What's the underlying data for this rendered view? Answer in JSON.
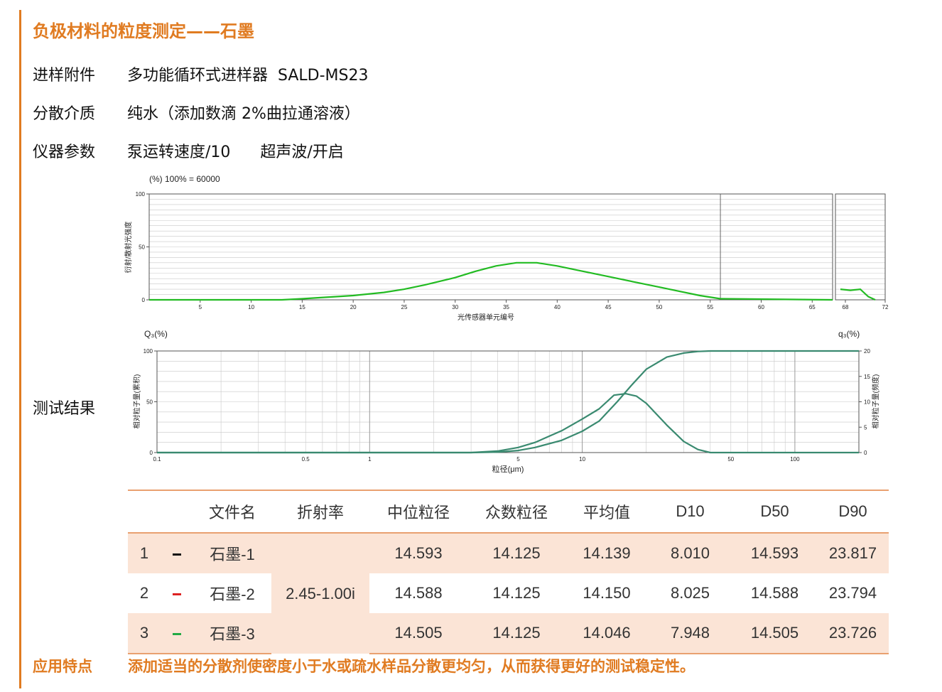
{
  "title": "负极材料的粒度测定——石墨",
  "params": [
    {
      "label": "进样附件",
      "value": "多功能循环式进样器  SALD-MS23"
    },
    {
      "label": "分散介质",
      "value": "纯水（添加数滴 2%曲拉通溶液）"
    },
    {
      "label": "仪器参数",
      "value": "泵运转速度/10      超声波/开启"
    }
  ],
  "result_label": "测试结果",
  "chart_data": [
    {
      "type": "line",
      "title": "(%) 100% = 60000",
      "xlabel": "光传感器单元编号",
      "ylabel": "衍射/散射光强度",
      "xlim": [
        0,
        67
      ],
      "ylim": [
        0,
        100
      ],
      "x_ticks": [
        5,
        10,
        15,
        20,
        25,
        30,
        35,
        40,
        45,
        50,
        55,
        60,
        65
      ],
      "y_ticks": [
        0,
        50,
        100
      ],
      "series": [
        {
          "color": "#22bb22",
          "x": [
            0,
            13,
            15,
            20,
            23,
            25,
            27,
            30,
            32,
            34,
            36,
            38,
            40,
            42,
            45,
            48,
            50,
            52,
            54,
            56,
            67
          ],
          "y": [
            0,
            0,
            1,
            4,
            7,
            10,
            14,
            21,
            27,
            32,
            35,
            35,
            32,
            28,
            22,
            16,
            12,
            8,
            4,
            1,
            0
          ]
        }
      ],
      "side_panel": {
        "x_ticks": [
          68,
          72
        ],
        "xlim": [
          67,
          72
        ],
        "series_x": [
          67.5,
          68.5,
          69.5,
          70.3,
          71
        ],
        "series_y": [
          10,
          9,
          10,
          3,
          0
        ]
      }
    },
    {
      "type": "line",
      "xlabel": "粒径(μm)",
      "ylabel_left": "相对粒子量(累积)",
      "ylabel_right": "相对粒子量(频度)",
      "left_axis_title": "Q₃(%)",
      "right_axis_title": "q₃(%)",
      "x_scale": "log",
      "xlim": [
        0.1,
        200
      ],
      "x_ticks": [
        0.1,
        0.5,
        1,
        5,
        10,
        50,
        100
      ],
      "ylim_left": [
        0,
        100
      ],
      "y_ticks_left": [
        0,
        50,
        100
      ],
      "ylim_right": [
        0,
        20
      ],
      "y_ticks_right": [
        0,
        5,
        10,
        15,
        20
      ],
      "series": [
        {
          "axis": "left",
          "color": "#3a8a70",
          "x": [
            0.1,
            3,
            4,
            5,
            6,
            8,
            10,
            12,
            14.6,
            17,
            20,
            25,
            30,
            35,
            40,
            200
          ],
          "y": [
            0,
            0,
            0.5,
            2,
            5,
            12,
            21,
            31,
            50,
            66,
            82,
            94,
            98,
            99.5,
            100,
            100
          ]
        },
        {
          "axis": "right",
          "color": "#3a8a70",
          "x": [
            0.1,
            3,
            4,
            5,
            6,
            8,
            10,
            12,
            14.1,
            16,
            18,
            20,
            25,
            30,
            35,
            40,
            200
          ],
          "y": [
            0,
            0,
            0.3,
            1,
            2,
            4.3,
            6.6,
            8.6,
            11.3,
            11.6,
            11.1,
            9.7,
            5.4,
            2.2,
            0.6,
            0,
            0
          ]
        }
      ]
    }
  ],
  "table": {
    "headers": [
      "",
      "",
      "文件名",
      "折射率",
      "中位粒径",
      "众数粒径",
      "平均值",
      "D10",
      "D50",
      "D90"
    ],
    "refractive_index": "2.45-1.00i",
    "rows": [
      {
        "no": "1",
        "color": "#111111",
        "name": "石墨-1",
        "median": "14.593",
        "mode": "14.125",
        "mean": "14.139",
        "d10": "8.010",
        "d50": "14.593",
        "d90": "23.817"
      },
      {
        "no": "2",
        "color": "#dd2222",
        "name": "石墨-2",
        "median": "14.588",
        "mode": "14.125",
        "mean": "14.150",
        "d10": "8.025",
        "d50": "14.588",
        "d90": "23.794"
      },
      {
        "no": "3",
        "color": "#22aa44",
        "name": "石墨-3",
        "median": "14.505",
        "mode": "14.125",
        "mean": "14.046",
        "d10": "7.948",
        "d50": "14.505",
        "d90": "23.726"
      }
    ]
  },
  "application": {
    "label": "应用特点",
    "text": "添加适当的分散剂使密度小于水或疏水样品分散更均匀，从而获得更好的测试稳定性。"
  },
  "colors": {
    "accent": "#e07b21",
    "table_shade": "#fbe4d6",
    "table_rule": "#e9a070"
  }
}
